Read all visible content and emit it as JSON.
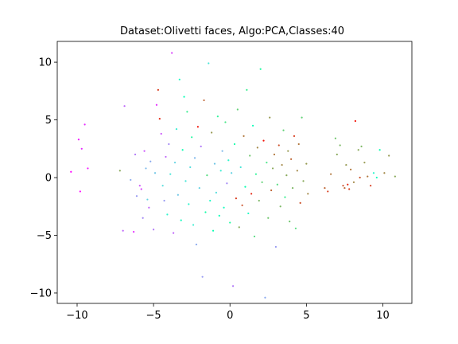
{
  "chart_data": {
    "type": "scatter",
    "title": "Dataset:Olivetti faces, Algo:PCA,Classes:40",
    "xlabel": "",
    "ylabel": "",
    "xlim": [
      -11.3,
      11.9
    ],
    "ylim": [
      -10.9,
      11.8
    ],
    "xticks": [
      -10,
      -5,
      0,
      5,
      10
    ],
    "yticks": [
      -10,
      -5,
      0,
      5,
      10
    ],
    "xtick_labels": [
      "−10",
      "−5",
      "0",
      "5",
      "10"
    ],
    "ytick_labels": [
      "−10",
      "−5",
      "0",
      "5",
      "10"
    ],
    "grid": false,
    "legend": false,
    "colormap": "rainbow",
    "num_classes": 40,
    "marker_size": 1,
    "points": [
      [
        -10.4,
        0.5,
        0
      ],
      [
        -9.9,
        3.3,
        1
      ],
      [
        -9.8,
        -1.2,
        0
      ],
      [
        -9.5,
        4.6,
        2
      ],
      [
        -9.3,
        0.8,
        1
      ],
      [
        -9.7,
        2.5,
        2
      ],
      [
        -7.2,
        0.6,
        30
      ],
      [
        -6.9,
        6.2,
        5
      ],
      [
        -7.0,
        -4.6,
        5
      ],
      [
        -6.5,
        -0.2,
        9
      ],
      [
        -6.3,
        -4.7,
        2
      ],
      [
        -6.2,
        2.0,
        6
      ],
      [
        -6.1,
        -1.6,
        8
      ],
      [
        -5.9,
        -0.7,
        4
      ],
      [
        -5.8,
        -1.0,
        3
      ],
      [
        -5.7,
        -3.5,
        7
      ],
      [
        -5.6,
        2.3,
        4
      ],
      [
        -5.5,
        0.8,
        10
      ],
      [
        -5.4,
        -1.9,
        12
      ],
      [
        -5.3,
        -2.6,
        5
      ],
      [
        -5.2,
        1.4,
        9
      ],
      [
        -5.0,
        -4.5,
        6
      ],
      [
        -4.9,
        0.4,
        11
      ],
      [
        -4.8,
        6.3,
        2
      ],
      [
        -4.7,
        7.6,
        36
      ],
      [
        -4.6,
        5.1,
        37
      ],
      [
        -4.5,
        3.8,
        4
      ],
      [
        -4.4,
        -0.7,
        13
      ],
      [
        -4.3,
        -2.0,
        8
      ],
      [
        -4.2,
        1.8,
        5
      ],
      [
        -4.1,
        -3.2,
        16
      ],
      [
        -4.0,
        2.9,
        7
      ],
      [
        -3.9,
        0.3,
        14
      ],
      [
        -3.8,
        10.8,
        3
      ],
      [
        -3.7,
        -4.8,
        5
      ],
      [
        -3.6,
        1.3,
        12
      ],
      [
        -3.5,
        4.2,
        15
      ],
      [
        -3.4,
        -1.5,
        11
      ],
      [
        -3.3,
        8.5,
        17
      ],
      [
        -3.2,
        -3.7,
        18
      ],
      [
        -3.1,
        2.4,
        20
      ],
      [
        -3.0,
        7.0,
        19
      ],
      [
        -2.9,
        -0.3,
        14
      ],
      [
        -2.8,
        5.7,
        24
      ],
      [
        -2.7,
        -2.3,
        16
      ],
      [
        -2.6,
        0.9,
        13
      ],
      [
        -2.5,
        3.5,
        22
      ],
      [
        -2.4,
        -4.1,
        15
      ],
      [
        -2.3,
        1.7,
        10
      ],
      [
        -2.2,
        -5.8,
        9
      ],
      [
        -2.1,
        4.4,
        38
      ],
      [
        -2.0,
        -0.9,
        12
      ],
      [
        -1.9,
        2.7,
        6
      ],
      [
        -1.8,
        -8.6,
        8
      ],
      [
        -1.7,
        6.7,
        34
      ],
      [
        -1.6,
        -3.0,
        21
      ],
      [
        -1.5,
        0.2,
        26
      ],
      [
        -1.4,
        9.9,
        14
      ],
      [
        -1.3,
        -2.0,
        17
      ],
      [
        -1.2,
        3.9,
        31
      ],
      [
        -1.1,
        -4.6,
        20
      ],
      [
        -1.0,
        1.2,
        11
      ],
      [
        -0.9,
        -1.3,
        13
      ],
      [
        -0.8,
        5.3,
        23
      ],
      [
        -0.7,
        -3.3,
        19
      ],
      [
        -0.6,
        0.6,
        15
      ],
      [
        -0.5,
        2.3,
        10
      ],
      [
        -0.4,
        -2.6,
        18
      ],
      [
        -0.3,
        4.8,
        25
      ],
      [
        -0.2,
        -0.5,
        7
      ],
      [
        -0.1,
        1.5,
        16
      ],
      [
        0.0,
        -3.9,
        22
      ],
      [
        0.1,
        0.4,
        12
      ],
      [
        0.2,
        -9.4,
        6
      ],
      [
        0.3,
        2.9,
        21
      ],
      [
        0.4,
        -1.8,
        36
      ],
      [
        0.5,
        5.9,
        27
      ],
      [
        0.6,
        -4.3,
        30
      ],
      [
        0.7,
        0.9,
        14
      ],
      [
        0.8,
        -2.4,
        35
      ],
      [
        0.9,
        3.6,
        33
      ],
      [
        1.0,
        -0.8,
        20
      ],
      [
        1.1,
        7.6,
        24
      ],
      [
        1.2,
        -3.1,
        17
      ],
      [
        1.3,
        1.9,
        28
      ],
      [
        1.4,
        -1.4,
        37
      ],
      [
        1.5,
        4.5,
        19
      ],
      [
        1.6,
        -5.1,
        26
      ],
      [
        1.7,
        0.3,
        23
      ],
      [
        1.8,
        2.6,
        32
      ],
      [
        1.9,
        -2.0,
        29
      ],
      [
        2.0,
        9.4,
        22
      ],
      [
        2.1,
        -0.4,
        27
      ],
      [
        2.2,
        3.2,
        38
      ],
      [
        2.3,
        -10.4,
        9
      ],
      [
        2.4,
        1.3,
        25
      ],
      [
        2.5,
        -3.5,
        28
      ],
      [
        2.6,
        5.2,
        31
      ],
      [
        2.7,
        -1.1,
        34
      ],
      [
        2.8,
        0.8,
        30
      ],
      [
        2.9,
        2.0,
        33
      ],
      [
        3.0,
        -6.0,
        8
      ],
      [
        3.1,
        -0.6,
        26
      ],
      [
        3.2,
        2.8,
        35
      ],
      [
        3.3,
        -2.5,
        29
      ],
      [
        3.4,
        1.1,
        32
      ],
      [
        3.5,
        4.1,
        27
      ],
      [
        3.6,
        -1.7,
        24
      ],
      [
        3.7,
        0.2,
        30
      ],
      [
        3.8,
        2.3,
        31
      ],
      [
        3.9,
        -3.8,
        28
      ],
      [
        4.0,
        1.6,
        34
      ],
      [
        4.1,
        -0.9,
        29
      ],
      [
        4.2,
        3.6,
        36
      ],
      [
        4.3,
        -4.4,
        26
      ],
      [
        4.4,
        0.6,
        32
      ],
      [
        4.5,
        2.9,
        33
      ],
      [
        4.6,
        -2.2,
        35
      ],
      [
        4.7,
        5.2,
        27
      ],
      [
        4.8,
        -0.3,
        30
      ],
      [
        5.0,
        1.2,
        31
      ],
      [
        5.1,
        -1.4,
        32
      ],
      [
        6.2,
        -0.9,
        34
      ],
      [
        6.4,
        -1.2,
        36
      ],
      [
        6.6,
        0.3,
        33
      ],
      [
        6.9,
        3.4,
        28
      ],
      [
        7.0,
        2.0,
        30
      ],
      [
        7.2,
        2.8,
        29
      ],
      [
        7.4,
        -0.7,
        35
      ],
      [
        7.5,
        -0.9,
        34
      ],
      [
        7.6,
        1.1,
        31
      ],
      [
        7.7,
        -0.6,
        37
      ],
      [
        7.8,
        -1.0,
        36
      ],
      [
        7.9,
        0.7,
        33
      ],
      [
        8.1,
        -0.4,
        32
      ],
      [
        8.2,
        4.9,
        38
      ],
      [
        8.4,
        2.4,
        30
      ],
      [
        8.5,
        0.0,
        35
      ],
      [
        8.6,
        2.7,
        29
      ],
      [
        8.8,
        1.3,
        31
      ],
      [
        9.0,
        0.1,
        33
      ],
      [
        9.2,
        -0.7,
        36
      ],
      [
        9.4,
        0.4,
        16
      ],
      [
        9.6,
        0.0,
        18
      ],
      [
        9.8,
        2.4,
        20
      ],
      [
        10.1,
        0.4,
        32
      ],
      [
        10.4,
        1.9,
        31
      ],
      [
        10.8,
        0.1,
        30
      ]
    ]
  }
}
